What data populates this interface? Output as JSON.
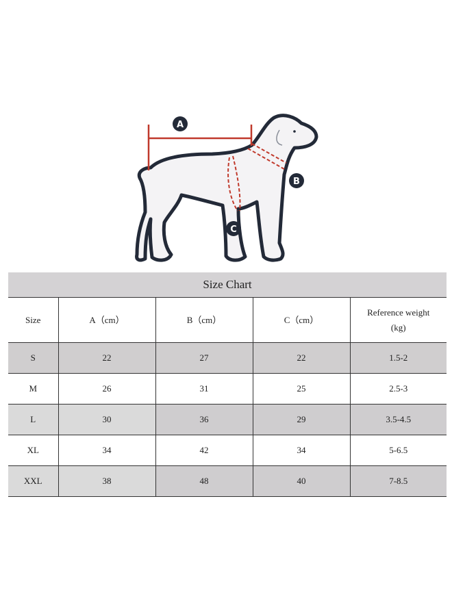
{
  "diagram": {
    "labels": [
      "A",
      "B",
      "C"
    ],
    "colors": {
      "outline": "#232a38",
      "measure": "#c0392b",
      "body": "#f4f3f5"
    }
  },
  "table": {
    "title": "Size Chart",
    "headers": [
      "Size",
      "A（cm）",
      "B（cm）",
      "C（cm）",
      "Reference weight (kg)"
    ],
    "header_weight_line1": "Reference weight",
    "header_weight_line2": "(kg)",
    "rows": [
      [
        "S",
        "22",
        "27",
        "22",
        "1.5-2"
      ],
      [
        "M",
        "26",
        "31",
        "25",
        "2.5-3"
      ],
      [
        "L",
        "30",
        "36",
        "29",
        "3.5-4.5"
      ],
      [
        "XL",
        "34",
        "42",
        "34",
        "5-6.5"
      ],
      [
        "XXL",
        "38",
        "48",
        "40",
        "7-8.5"
      ]
    ]
  }
}
